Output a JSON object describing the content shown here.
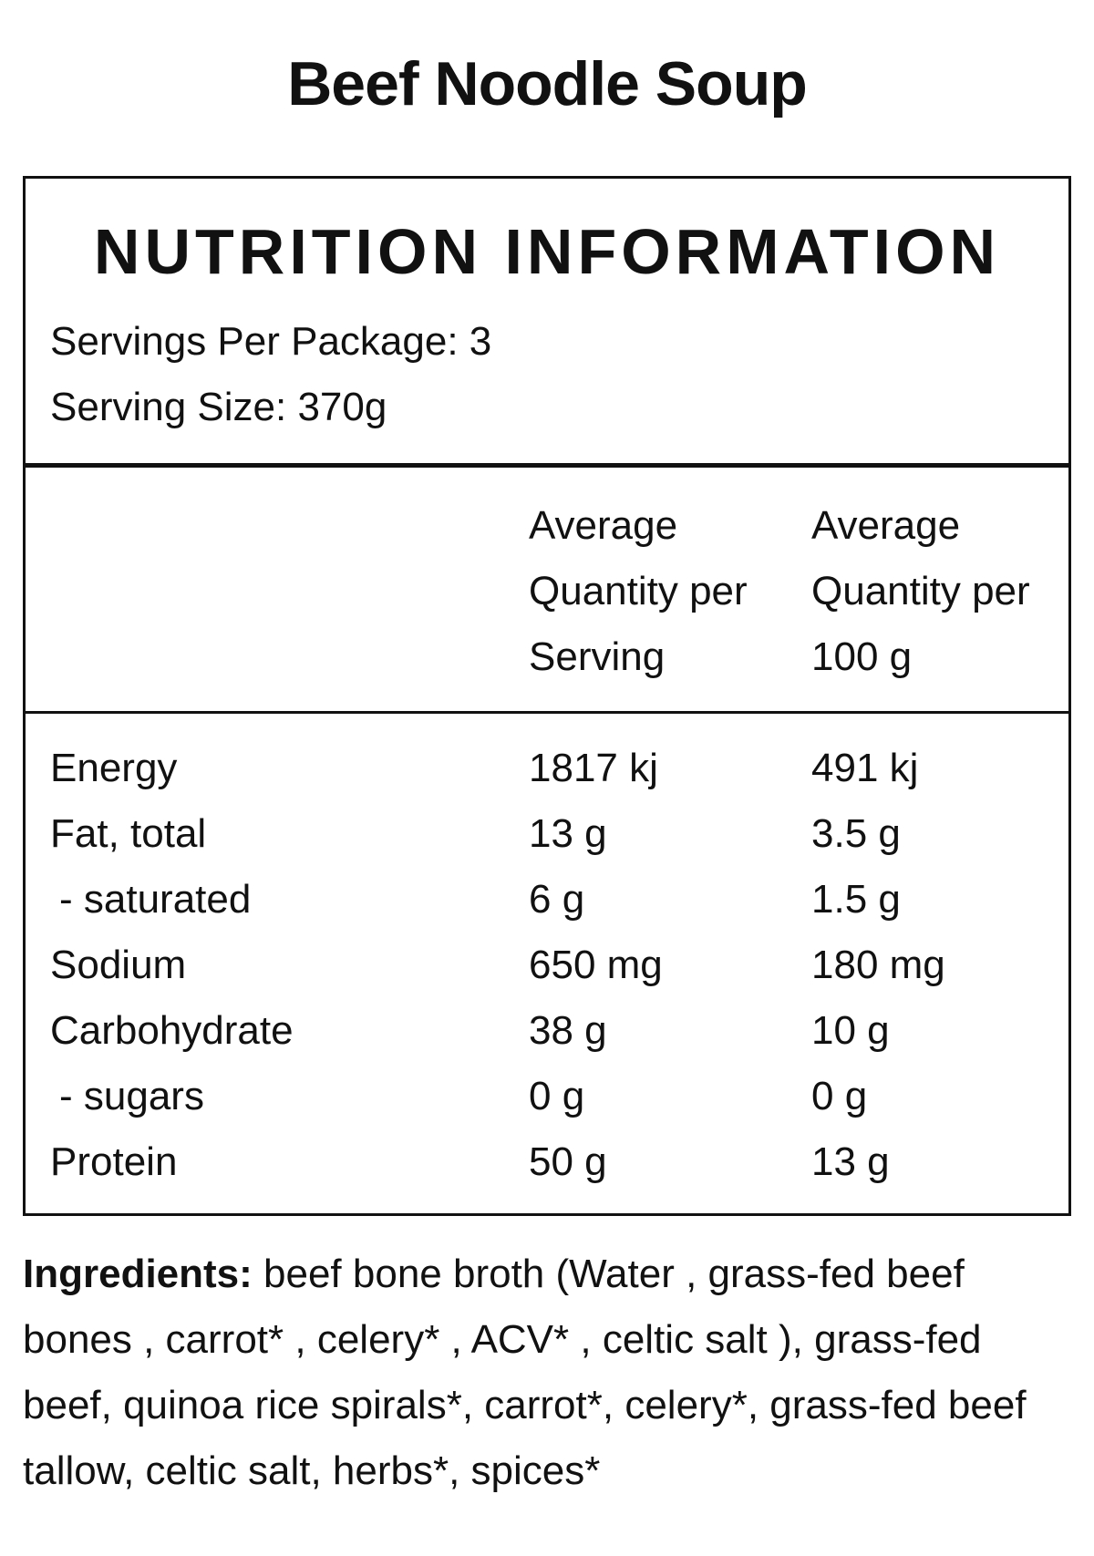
{
  "product": {
    "title": "Beef Noodle Soup"
  },
  "panel": {
    "heading": "NUTRITION INFORMATION",
    "servings_per_package": "Servings Per Package: 3",
    "serving_size": "Serving Size: 370g"
  },
  "columns": {
    "per_serving": [
      "Average",
      "Quantity per",
      "Serving"
    ],
    "per_100g": [
      "Average",
      "Quantity per",
      "100 g"
    ]
  },
  "rows": [
    {
      "name": "Energy",
      "per_serving": "1817 kj",
      "per_100g": "491 kj"
    },
    {
      "name": "Fat, total",
      "per_serving": "13 g",
      "per_100g": "3.5 g"
    },
    {
      "name": "- saturated",
      "per_serving": "6 g",
      "per_100g": "1.5 g"
    },
    {
      "name": "Sodium",
      "per_serving": "650 mg",
      "per_100g": "180 mg"
    },
    {
      "name": "Carbohydrate",
      "per_serving": "38 g",
      "per_100g": "10 g"
    },
    {
      "name": "- sugars",
      "per_serving": "0 g",
      "per_100g": "0 g"
    },
    {
      "name": "Protein",
      "per_serving": "50 g",
      "per_100g": "13 g"
    }
  ],
  "ingredients": {
    "label": "Ingredients:",
    "text": " beef bone broth (Water , grass-fed beef bones , carrot* , celery* , ACV* , celtic salt ), grass-fed beef, quinoa rice spirals*, carrot*, celery*, grass-fed beef tallow, celtic salt, herbs*, spices*"
  }
}
